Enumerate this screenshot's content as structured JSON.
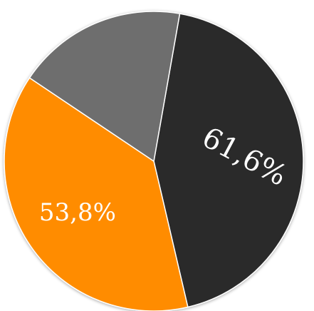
{
  "chart_data": {
    "type": "pie",
    "slices": [
      {
        "label": "61,6%",
        "value": 61.6,
        "color": "#2b2a2a",
        "label_color": "#ffffff"
      },
      {
        "label": "53,8%",
        "value": 53.8,
        "color": "#ff8c00",
        "label_color": "#ffffff"
      },
      {
        "label": "",
        "value": 26.0,
        "color": "#6e6e6e",
        "label_color": "#ffffff"
      }
    ],
    "legend": "none",
    "grid": false
  }
}
